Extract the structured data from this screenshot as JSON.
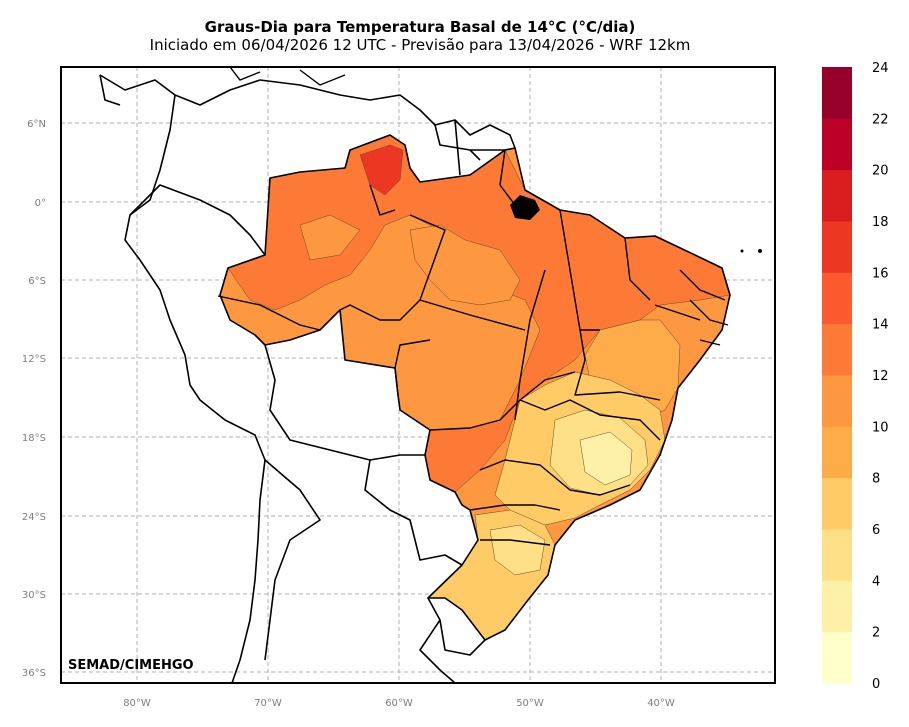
{
  "title": "Graus-Dia para Temperatura Basal de 14°C (°C/dia)",
  "subtitle": "Iniciado em 06/04/2026 12 UTC - Previsão para 13/04/2026 - WRF 12km",
  "credit": "SEMAD/CIMEHGO",
  "lat_ticks": [
    "6°N",
    "0°",
    "6°S",
    "12°S",
    "18°S",
    "24°S",
    "30°S",
    "36°S"
  ],
  "lon_ticks": [
    "80°W",
    "70°W",
    "60°W",
    "50°W",
    "40°W"
  ],
  "colorbar": {
    "tick_labels": [
      "0",
      "2",
      "4",
      "6",
      "8",
      "10",
      "12",
      "14",
      "16",
      "18",
      "20",
      "22",
      "24"
    ],
    "colors": [
      "#ffffcc",
      "#fff0a8",
      "#fee187",
      "#fecb66",
      "#feab4a",
      "#fd9740",
      "#fd7a36",
      "#fc5a2d",
      "#ec3823",
      "#d81d1f",
      "#bd0026",
      "#98002c"
    ]
  },
  "colors": {
    "hot": "#fd7a36",
    "warm": "#fd9740",
    "mild": "#feab4a",
    "cool": "#fecb66",
    "cooler": "#fee187",
    "cold": "#fff0a8",
    "peak": "#d81d1f"
  }
}
